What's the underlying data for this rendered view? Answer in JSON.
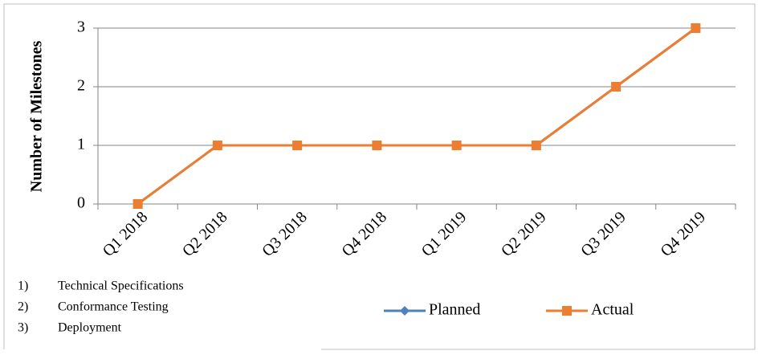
{
  "chart_data": {
    "type": "line",
    "ylabel": "Number of Milestones",
    "categories": [
      "Q1 2018",
      "Q2 2018",
      "Q3 2018",
      "Q4 2018",
      "Q1 2019",
      "Q2 2019",
      "Q3 2019",
      "Q4 2019"
    ],
    "series": [
      {
        "name": "Planned",
        "color": "#4f81bd",
        "marker": "diamond",
        "values": [
          0,
          1,
          1,
          1,
          1,
          1,
          2,
          3
        ]
      },
      {
        "name": "Actual",
        "color": "#ed7d31",
        "marker": "square",
        "values": [
          0,
          1,
          1,
          1,
          1,
          1,
          2,
          3
        ]
      }
    ],
    "ylim": [
      0,
      3
    ],
    "yticks": [
      0,
      1,
      2,
      3
    ],
    "grid": true,
    "legend": "bottom"
  },
  "notes": [
    {
      "number": "1)",
      "text": "Technical Specifications"
    },
    {
      "number": "2)",
      "text": "Conformance Testing"
    },
    {
      "number": "3)",
      "text": "Deployment"
    }
  ]
}
